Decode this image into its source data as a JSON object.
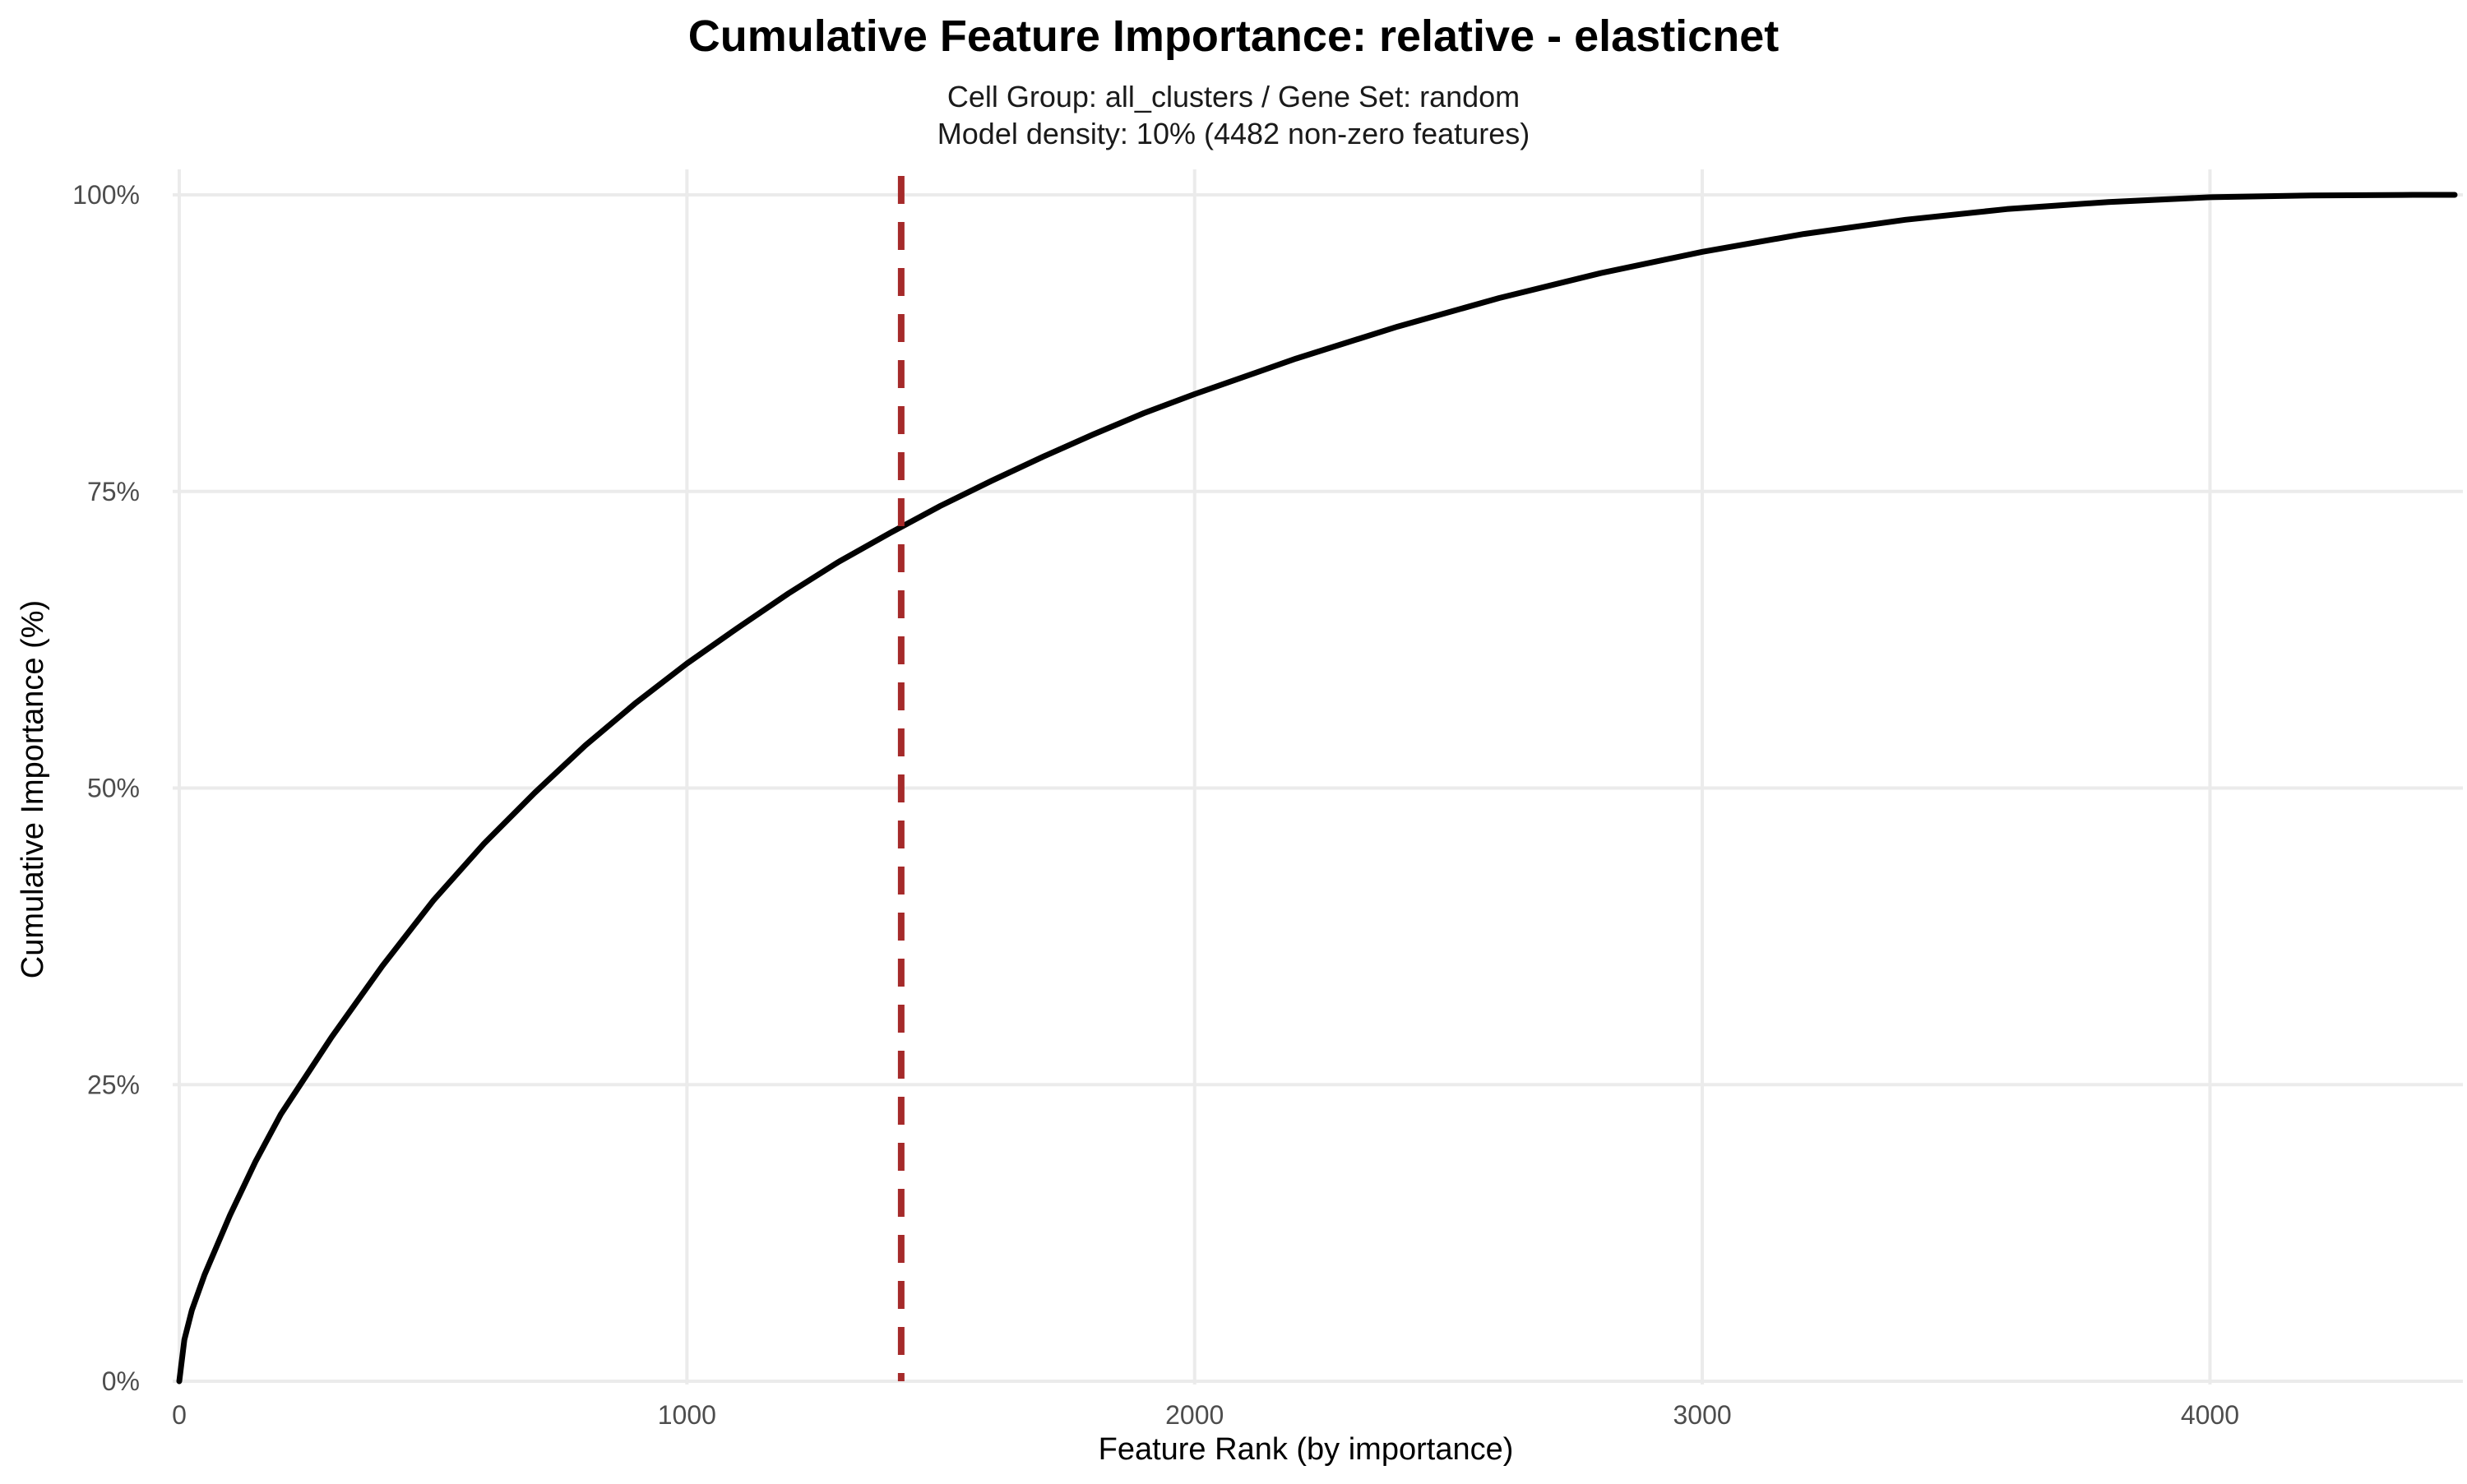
{
  "chart_data": {
    "type": "line",
    "title": "Cumulative Feature Importance: relative - elasticnet",
    "subtitle_lines": [
      "Cell Group: all_clusters / Gene Set: random",
      "Model density: 10% (4482 non-zero features)"
    ],
    "xlabel": "Feature Rank (by importance)",
    "ylabel": "Cumulative Importance (%)",
    "xlim": [
      0,
      4482
    ],
    "ylim": [
      0,
      100
    ],
    "x_ticks": [
      0,
      1000,
      2000,
      3000,
      4000
    ],
    "x_tick_labels": [
      "0",
      "1000",
      "2000",
      "3000",
      "4000"
    ],
    "y_ticks": [
      0,
      25,
      50,
      75,
      100
    ],
    "y_tick_labels": [
      "0%",
      "25%",
      "50%",
      "75%",
      "100%"
    ],
    "grid": true,
    "legend": "none",
    "series": [
      {
        "color": "#000000",
        "x": [
          0,
          10,
          25,
          50,
          100,
          150,
          200,
          300,
          400,
          500,
          600,
          700,
          800,
          900,
          1000,
          1100,
          1200,
          1300,
          1400,
          1500,
          1600,
          1700,
          1800,
          1900,
          2000,
          2200,
          2400,
          2600,
          2800,
          3000,
          3200,
          3400,
          3600,
          3800,
          4000,
          4200,
          4400,
          4482
        ],
        "y": [
          0,
          3.5,
          6.0,
          9.0,
          14.0,
          18.5,
          22.5,
          29.0,
          35.0,
          40.5,
          45.3,
          49.6,
          53.6,
          57.2,
          60.5,
          63.5,
          66.4,
          69.1,
          71.5,
          73.8,
          75.9,
          77.9,
          79.8,
          81.6,
          83.2,
          86.2,
          88.9,
          91.3,
          93.4,
          95.2,
          96.7,
          97.9,
          98.8,
          99.4,
          99.8,
          99.95,
          100,
          100
        ]
      }
    ],
    "reference_line": {
      "orientation": "vertical",
      "x": 1422,
      "style": "dashed",
      "color": "#A52A2A"
    }
  }
}
